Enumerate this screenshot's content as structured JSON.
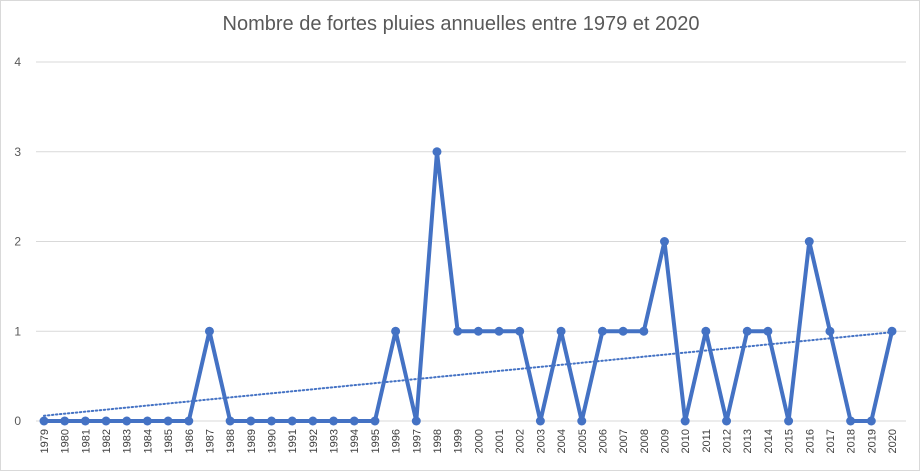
{
  "chart_data": {
    "type": "line",
    "title": "Nombre de fortes pluies annuelles entre 1979 et 2020",
    "xlabel": "",
    "ylabel": "",
    "ylim": [
      0,
      4
    ],
    "yticks": [
      "0",
      "1",
      "2",
      "3",
      "4"
    ],
    "categories": [
      "1979",
      "1980",
      "1981",
      "1982",
      "1983",
      "1984",
      "1985",
      "1986",
      "1987",
      "1988",
      "1989",
      "1990",
      "1991",
      "1992",
      "1993",
      "1994",
      "1995",
      "1996",
      "1997",
      "1998",
      "1999",
      "2000",
      "2001",
      "2002",
      "2003",
      "2004",
      "2005",
      "2006",
      "2007",
      "2008",
      "2009",
      "2010",
      "2011",
      "2012",
      "2013",
      "2014",
      "2015",
      "2016",
      "2017",
      "2018",
      "2019",
      "2020"
    ],
    "series": [
      {
        "values": [
          0,
          0,
          0,
          0,
          0,
          0,
          0,
          0,
          1,
          0,
          0,
          0,
          0,
          0,
          0,
          0,
          0,
          1,
          0,
          3,
          1,
          1,
          1,
          1,
          0,
          1,
          0,
          1,
          1,
          1,
          2,
          0,
          1,
          0,
          1,
          1,
          0,
          2,
          1,
          0,
          0,
          1
        ],
        "color": "#4472c4"
      }
    ],
    "trendline": {
      "type": "linear",
      "style": "dotted",
      "color": "#4472c4"
    },
    "grid": true,
    "legend": "none"
  }
}
